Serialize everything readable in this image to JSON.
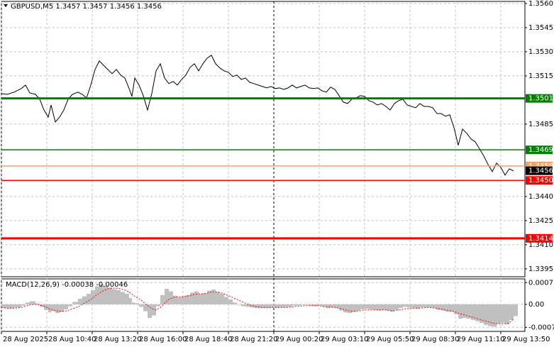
{
  "chart_data": [
    {
      "type": "line",
      "title": "GBPUSD,M5  1.3457 1.3457 1.3456 1.3456",
      "x": [
        0,
        4,
        9,
        14,
        17,
        20,
        24,
        27,
        30,
        33,
        35,
        38,
        41,
        44,
        47,
        50,
        54,
        57,
        60,
        63,
        66,
        69,
        72,
        75,
        78,
        81,
        84,
        87,
        90,
        92,
        94,
        97,
        100,
        103,
        106,
        109,
        112,
        115,
        118,
        121,
        124,
        127,
        130,
        133,
        136,
        139,
        142,
        145,
        148,
        151,
        154,
        157,
        160,
        163,
        166,
        169,
        172,
        175,
        178,
        181,
        184,
        187,
        190,
        193,
        196,
        199,
        202,
        205,
        208,
        211,
        214,
        217,
        220,
        223,
        226,
        229,
        232,
        235,
        238,
        241,
        244,
        247,
        250,
        253,
        256,
        259,
        262,
        265,
        268,
        271,
        274,
        277,
        280,
        283,
        286,
        289,
        292,
        295,
        298,
        301,
        304,
        307,
        310,
        313,
        316,
        319,
        322,
        325,
        328,
        331,
        334,
        337,
        340,
        343,
        346,
        349,
        352,
        355,
        358,
        361
      ],
      "series": [
        {
          "color": "#000000",
          "values": [
            1.3504,
            1.35035,
            1.35049,
            1.35071,
            1.35093,
            1.35044,
            1.35035,
            1.35005,
            1.34938,
            1.34894,
            1.34969,
            1.34863,
            1.34894,
            1.34938,
            1.35005,
            1.35035,
            1.35049,
            1.35035,
            1.35013,
            1.35093,
            1.3519,
            1.35243,
            1.35216,
            1.3519,
            1.35164,
            1.3519,
            1.35155,
            1.35137,
            1.35071,
            1.35022,
            1.35137,
            1.35093,
            1.35027,
            1.34938,
            1.3504,
            1.35181,
            1.35225,
            1.35137,
            1.35102,
            1.35115,
            1.35093,
            1.35128,
            1.35155,
            1.35203,
            1.35225,
            1.35181,
            1.35225,
            1.3526,
            1.35278,
            1.35225,
            1.35199,
            1.35181,
            1.35172,
            1.35146,
            1.35155,
            1.35128,
            1.35137,
            1.3511,
            1.35102,
            1.35093,
            1.35084,
            1.35075,
            1.35084,
            1.35071,
            1.35075,
            1.35066,
            1.35075,
            1.35093,
            1.35075,
            1.35084,
            1.35093,
            1.35075,
            1.35071,
            1.35075,
            1.35057,
            1.35049,
            1.3508,
            1.35066,
            1.35027,
            1.34987,
            1.34978,
            1.35005,
            1.35013,
            1.35027,
            1.35022,
            1.34996,
            1.34987,
            1.34969,
            1.34978,
            1.3496,
            1.34938,
            1.34978,
            1.34996,
            1.35005,
            1.34969,
            1.3496,
            1.34952,
            1.34978,
            1.3496,
            1.3496,
            1.34952,
            1.34916,
            1.34916,
            1.34899,
            1.34908,
            1.34828,
            1.34718,
            1.34819,
            1.34793,
            1.34758,
            1.3474,
            1.34696,
            1.34652,
            1.34599,
            1.34555,
            1.34608,
            1.34581,
            1.34533,
            1.34572,
            1.34559
          ]
        }
      ],
      "xlim": [
        0,
        369
      ],
      "xticks": [
        {
          "value": 0,
          "label": "28 Aug 2025"
        },
        {
          "value": 32,
          "label": "28 Aug 10:40"
        },
        {
          "value": 64,
          "label": "28 Aug 13:20"
        },
        {
          "value": 96,
          "label": "28 Aug 16:00"
        },
        {
          "value": 128,
          "label": "28 Aug 18:40"
        },
        {
          "value": 160,
          "label": "28 Aug 21:20"
        },
        {
          "value": 192,
          "label": "29 Aug 00:20"
        },
        {
          "value": 224,
          "label": "29 Aug 03:10"
        },
        {
          "value": 256,
          "label": "29 Aug 05:50"
        },
        {
          "value": 288,
          "label": "29 Aug 08:30"
        },
        {
          "value": 320,
          "label": "29 Aug 11:10"
        },
        {
          "value": 352,
          "label": "29 Aug 13:50"
        }
      ],
      "ylim": [
        1.33901,
        1.35613
      ],
      "yticks": [
        {
          "value": 1.356,
          "label": "1.3560"
        },
        1.3545,
        {
          "value": 1.353,
          "label": "1.3530"
        },
        1.3515,
        1.3485,
        {
          "value": 1.344,
          "label": "1.3440"
        },
        1.3425,
        {
          "value": 1.341,
          "label": "1.3410"
        },
        1.3395
      ],
      "grid": true,
      "separator_x": 192,
      "levels": [
        {
          "value": 1.3501,
          "color": "#008000",
          "thick": true
        },
        {
          "value": 1.3469,
          "color": "#008000",
          "thick": false
        },
        {
          "value": 1.3459,
          "color": "#f4a460",
          "thick": false
        },
        {
          "value": 1.345,
          "label": "1.3450",
          "color": "#ff0000",
          "thick": false
        },
        {
          "value": 1.3414,
          "color": "#ff0000",
          "thick": true
        }
      ],
      "last_price": 1.3456,
      "last_color": "#000000"
    },
    {
      "type": "macd",
      "title": "MACD(12,26,9) -0.00038 -0.00046",
      "x": [
        0,
        4,
        9,
        14,
        17,
        20,
        24,
        27,
        30,
        33,
        35,
        38,
        41,
        44,
        47,
        50,
        54,
        57,
        60,
        63,
        66,
        69,
        72,
        75,
        78,
        81,
        84,
        87,
        90,
        92,
        94,
        97,
        100,
        103,
        106,
        109,
        112,
        115,
        118,
        121,
        124,
        127,
        130,
        133,
        136,
        139,
        142,
        145,
        148,
        151,
        154,
        157,
        160,
        163,
        166,
        169,
        172,
        175,
        178,
        181,
        184,
        187,
        190,
        193,
        196,
        199,
        202,
        205,
        208,
        211,
        214,
        217,
        220,
        223,
        226,
        229,
        232,
        235,
        238,
        241,
        244,
        247,
        250,
        253,
        256,
        259,
        262,
        265,
        268,
        271,
        274,
        277,
        280,
        283,
        286,
        289,
        292,
        295,
        298,
        301,
        304,
        307,
        310,
        313,
        316,
        319,
        322,
        325,
        328,
        331,
        334,
        337,
        340,
        343,
        346,
        349,
        352,
        355,
        358,
        361
      ],
      "series": [
        {
          "style": "bar",
          "color": "#c0c0c0",
          "values": [
            -0.00012,
            -0.00013,
            -0.0001,
            -4e-05,
            6e-05,
            0.0001,
            3e-05,
            -8e-05,
            -0.00018,
            -0.00026,
            -0.00022,
            -0.00028,
            -0.00024,
            -0.00016,
            -6e-05,
            8e-05,
            0.00018,
            0.00026,
            0.00034,
            0.00046,
            0.00058,
            0.00064,
            0.0006,
            0.00054,
            0.00048,
            0.00046,
            0.0004,
            0.00034,
            0.0002,
            6e-05,
            4e-05,
            -8e-05,
            -0.00022,
            -0.00044,
            -0.00036,
            -6e-05,
            0.0003,
            0.0005,
            0.00042,
            0.00028,
            0.00022,
            0.00026,
            0.0003,
            0.00038,
            0.00042,
            0.00034,
            0.00036,
            0.00044,
            0.00048,
            0.0004,
            0.00034,
            0.00024,
            0.00016,
            6e-05,
            0.0,
            -6e-05,
            -8e-05,
            -0.0001,
            -0.00012,
            -0.00012,
            -0.00012,
            -0.00012,
            -0.0001,
            -0.00012,
            -0.0001,
            -0.0001,
            -8e-05,
            -4e-05,
            -4e-05,
            -2e-05,
            -2e-05,
            -4e-05,
            -6e-05,
            -4e-05,
            -8e-05,
            -0.00012,
            -0.0001,
            -0.00012,
            -0.0002,
            -0.00026,
            -0.00028,
            -0.00024,
            -0.0002,
            -0.00016,
            -0.00014,
            -0.00016,
            -0.00018,
            -0.0002,
            -0.00018,
            -0.0002,
            -0.00024,
            -0.00018,
            -0.00012,
            -8e-05,
            -0.0001,
            -0.00012,
            -0.00014,
            -0.0001,
            -0.0001,
            -0.0001,
            -0.00012,
            -0.00018,
            -0.0002,
            -0.00024,
            -0.00024,
            -0.00032,
            -0.00046,
            -0.00044,
            -0.00046,
            -0.0005,
            -0.00054,
            -0.0006,
            -0.00066,
            -0.0007,
            -0.00072,
            -0.00062,
            -0.0006,
            -0.00064,
            -0.0005,
            -0.00038
          ]
        },
        {
          "style": "dotted-line",
          "color": "#ff0000",
          "values": [
            -0.0001,
            -0.00012,
            -0.00012,
            -0.0001,
            -6e-05,
            -2e-05,
            0.0,
            -2e-05,
            -6e-05,
            -0.00012,
            -0.00016,
            -0.0002,
            -0.00022,
            -0.00022,
            -0.0002,
            -0.00014,
            -8e-05,
            0.0,
            8e-05,
            0.00016,
            0.00026,
            0.00036,
            0.00044,
            0.0005,
            0.00052,
            0.00052,
            0.0005,
            0.00046,
            0.0004,
            0.00032,
            0.00026,
            0.00018,
            8e-05,
            -4e-05,
            -0.00014,
            -0.00018,
            -0.0001,
            4e-05,
            0.00016,
            0.00022,
            0.00024,
            0.00024,
            0.00026,
            0.00028,
            0.00032,
            0.00034,
            0.00034,
            0.00036,
            0.0004,
            0.0004,
            0.00038,
            0.00034,
            0.00028,
            0.00022,
            0.00016,
            0.0001,
            4e-05,
            -2e-05,
            -6e-05,
            -8e-05,
            -0.0001,
            -0.0001,
            -0.0001,
            -0.0001,
            -0.0001,
            -0.0001,
            -0.0001,
            -8e-05,
            -6e-05,
            -6e-05,
            -4e-05,
            -4e-05,
            -4e-05,
            -4e-05,
            -6e-05,
            -8e-05,
            -8e-05,
            -0.0001,
            -0.00012,
            -0.00016,
            -0.0002,
            -0.00022,
            -0.00022,
            -0.0002,
            -0.00018,
            -0.00018,
            -0.00018,
            -0.00018,
            -0.00018,
            -0.00018,
            -0.0002,
            -0.0002,
            -0.00018,
            -0.00016,
            -0.00014,
            -0.00012,
            -0.00012,
            -0.00012,
            -0.00011,
            -0.0001,
            -0.00011,
            -0.00013,
            -0.00015,
            -0.00018,
            -0.0002,
            -0.00023,
            -0.00028,
            -0.00032,
            -0.00036,
            -0.0004,
            -0.00044,
            -0.00048,
            -0.00052,
            -0.00056,
            -0.0006,
            -0.00062,
            -0.00062,
            -0.00062,
            -0.0006,
            -0.00046
          ]
        }
      ],
      "xlim": [
        0,
        369
      ],
      "ylim": [
        -0.00087,
        0.00082
      ],
      "yticks": [
        0.0007,
        {
          "value": 0,
          "label": "0.00"
        },
        -0.00074
      ],
      "grid": true
    }
  ]
}
